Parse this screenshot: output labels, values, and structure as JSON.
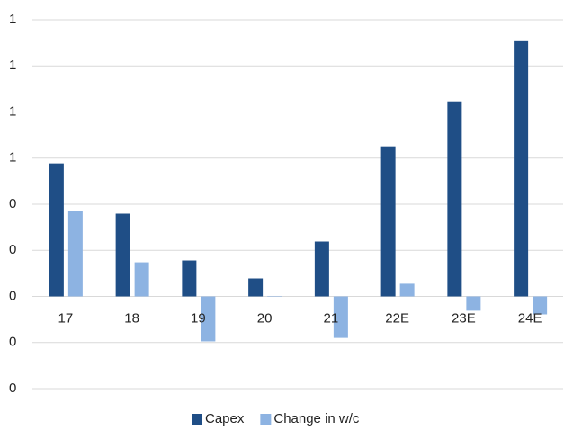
{
  "chart_data": {
    "type": "bar",
    "categories": [
      "17",
      "18",
      "19",
      "20",
      "21",
      "22E",
      "23E",
      "24E"
    ],
    "series": [
      {
        "name": "Capex",
        "color": "#1f4e86",
        "values": [
          0.577,
          0.359,
          0.156,
          0.078,
          0.238,
          0.651,
          0.846,
          1.107
        ]
      },
      {
        "name": "Change in w/c",
        "color": "#8db3e2",
        "values": [
          0.37,
          0.148,
          -0.195,
          0.002,
          -0.18,
          0.055,
          -0.062,
          -0.078
        ]
      }
    ],
    "ylim": [
      -0.4,
      1.2
    ],
    "yticks": [
      {
        "value": -0.4,
        "label": "0"
      },
      {
        "value": -0.2,
        "label": "0"
      },
      {
        "value": 0,
        "label": "0"
      },
      {
        "value": 0.2,
        "label": "0"
      },
      {
        "value": 0.4,
        "label": "0"
      },
      {
        "value": 0.6,
        "label": "1"
      },
      {
        "value": 0.8,
        "label": "1"
      },
      {
        "value": 1.0,
        "label": "1"
      },
      {
        "value": 1.2,
        "label": "1"
      }
    ],
    "grid": true,
    "legend": "bottom"
  }
}
